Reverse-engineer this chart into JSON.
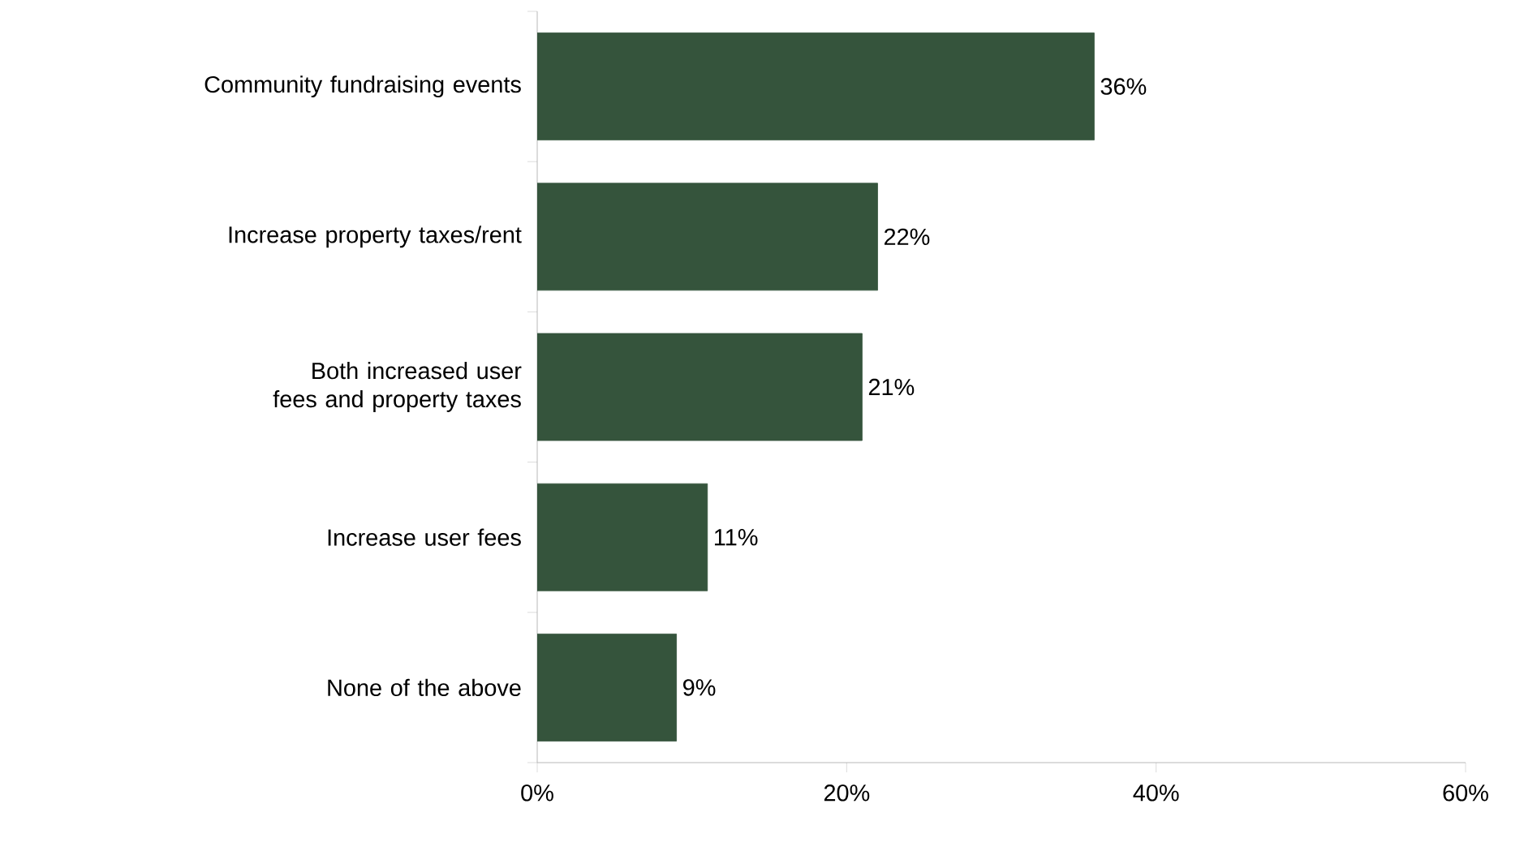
{
  "chart_data": {
    "type": "bar",
    "orientation": "horizontal",
    "categories": [
      "Community fundraising events",
      "Increase property taxes/rent",
      "Both increased user fees and property taxes",
      "Increase user fees",
      "None of the above"
    ],
    "values": [
      36,
      22,
      21,
      11,
      9
    ],
    "value_labels": [
      "36%",
      "22%",
      "21%",
      "11%",
      "9%"
    ],
    "color": "#35543c",
    "xlim": [
      0,
      60
    ],
    "xticks": [
      {
        "value": 0,
        "label": "0%"
      },
      {
        "value": 20,
        "label": "20%"
      },
      {
        "value": 40,
        "label": "40%"
      },
      {
        "value": 60,
        "label": "60%"
      }
    ],
    "grid": false
  }
}
